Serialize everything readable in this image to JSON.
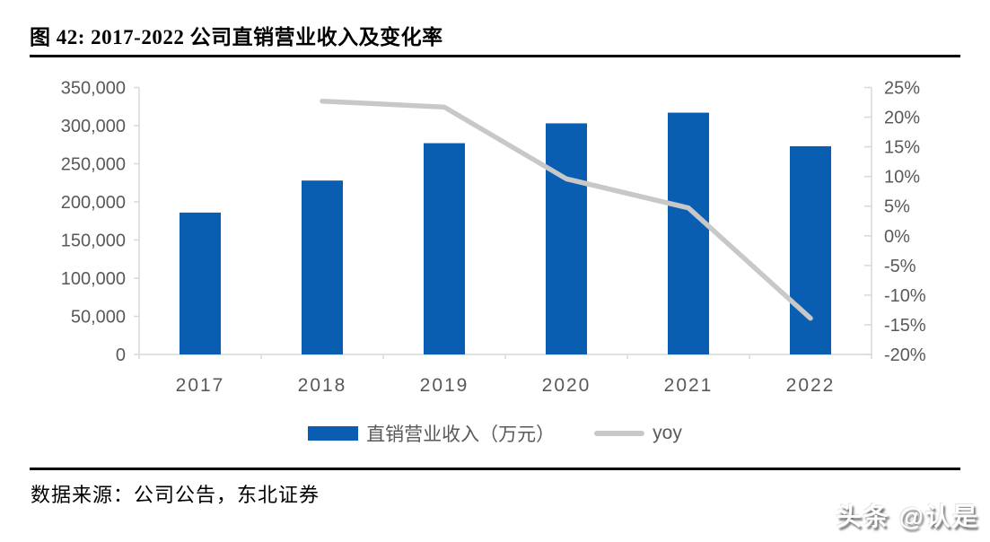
{
  "title": {
    "text": "图 42: 2017-2022 公司直销营业收入及变化率"
  },
  "source": {
    "text": "数据来源：公司公告，东北证券"
  },
  "watermark": {
    "text": "头条 @认是"
  },
  "chart_data": {
    "type": "combo-bar-line",
    "categories": [
      "2017",
      "2018",
      "2019",
      "2020",
      "2021",
      "2022"
    ],
    "series": [
      {
        "name": "直销营业收入（万元）",
        "type": "bar",
        "axis": "left",
        "color": "#0A5EB2",
        "values": [
          186000,
          228000,
          277000,
          303000,
          317000,
          273000
        ]
      },
      {
        "name": "yoy",
        "type": "line",
        "axis": "right",
        "color": "#C8C8C8",
        "values": [
          null,
          22.7,
          21.7,
          9.6,
          4.7,
          -13.9
        ]
      }
    ],
    "left_axis": {
      "min": 0,
      "max": 350000,
      "tick_step": 50000,
      "tick_labels": [
        "0",
        "50,000",
        "100,000",
        "150,000",
        "200,000",
        "250,000",
        "300,000",
        "350,000"
      ]
    },
    "right_axis": {
      "min": -20,
      "max": 25,
      "tick_step": 5,
      "tick_labels": [
        "-20%",
        "-15%",
        "-10%",
        "-5%",
        "0%",
        "5%",
        "10%",
        "15%",
        "20%",
        "25%"
      ]
    },
    "grid": "off",
    "legend_position": "bottom",
    "axis_color": "#D8D8D8",
    "tick_text_color": "#595959"
  }
}
